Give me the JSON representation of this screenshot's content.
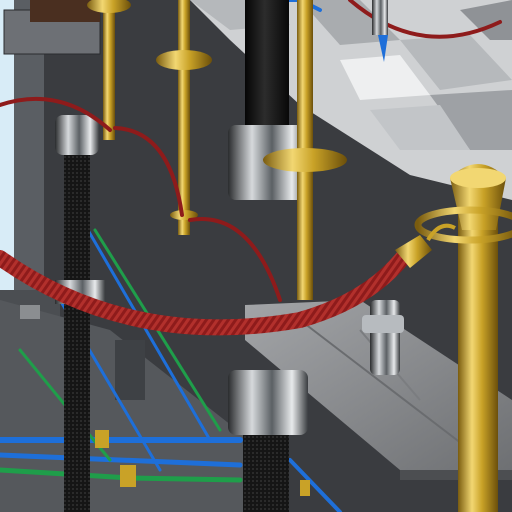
{
  "scene": {
    "colors": {
      "backdrop": "#2d2f33",
      "slab": "#4a4c50",
      "floor_light": "#d9dadb",
      "floor_dark": "#a9acaf",
      "brass": "#c9a227",
      "brass_highlight": "#f2d772",
      "brass_shadow": "#7a5c0f",
      "velvet_rope": "#8e1b1b",
      "velvet_highlight": "#c0413d",
      "black_column": "#141414",
      "chrome": "#9ea3a8",
      "steel_plate": "#8d8f92",
      "cable_blue": "#1e6fd9",
      "cable_green": "#1f9e4a",
      "window_blue": "#d8ecf7"
    },
    "icons": [
      "rope-hook-icon",
      "stanchion-cap-icon",
      "brass-clamp-icon"
    ]
  }
}
